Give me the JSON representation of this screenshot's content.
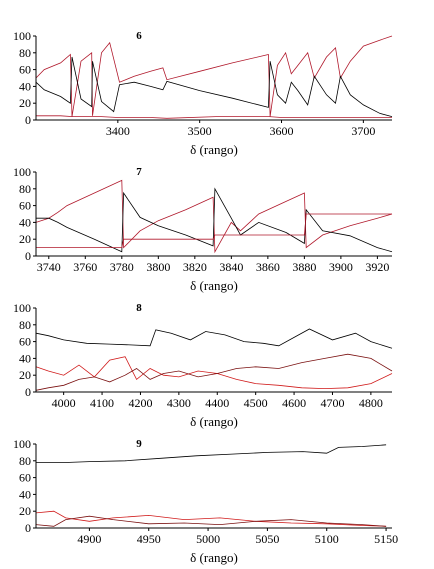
{
  "chart_data": [
    {
      "type": "line",
      "title": "6",
      "xlabel": "δ (rango)",
      "xlim": [
        3300,
        3735
      ],
      "ylim": [
        0,
        100
      ],
      "xticks": [
        3400,
        3500,
        3600,
        3700
      ],
      "yticks": [
        0,
        20,
        40,
        60,
        80,
        100
      ],
      "grid": false,
      "series": [
        {
          "color": "#b0182b",
          "x": [
            3300,
            3310,
            3330,
            3342,
            3344,
            3355,
            3368,
            3369,
            3380,
            3390,
            3402,
            3420,
            3440,
            3455,
            3460,
            3500,
            3540,
            3584,
            3586,
            3595,
            3605,
            3612,
            3620,
            3632,
            3640,
            3655,
            3666,
            3672,
            3684,
            3700,
            3720,
            3735
          ],
          "y": [
            50,
            60,
            68,
            78,
            4,
            70,
            80,
            5,
            80,
            92,
            45,
            52,
            58,
            62,
            48,
            58,
            68,
            78,
            4,
            65,
            80,
            55,
            65,
            80,
            50,
            75,
            86,
            50,
            70,
            88,
            95,
            100
          ]
        },
        {
          "color": "#000000",
          "x": [
            3300,
            3310,
            3330,
            3342,
            3344,
            3355,
            3368,
            3369,
            3380,
            3395,
            3402,
            3420,
            3440,
            3455,
            3460,
            3500,
            3540,
            3584,
            3586,
            3595,
            3605,
            3612,
            3620,
            3632,
            3640,
            3655,
            3666,
            3672,
            3684,
            3700,
            3720,
            3735
          ],
          "y": [
            45,
            36,
            28,
            20,
            75,
            25,
            16,
            70,
            22,
            10,
            42,
            45,
            40,
            36,
            46,
            35,
            26,
            15,
            70,
            30,
            20,
            45,
            35,
            18,
            52,
            30,
            20,
            52,
            30,
            18,
            8,
            4
          ]
        },
        {
          "color": "#b0182b",
          "x": [
            3300,
            3330,
            3345,
            3380,
            3400,
            3440,
            3460,
            3520,
            3585,
            3600,
            3735
          ],
          "y": [
            5,
            5,
            4,
            4,
            3,
            3,
            2,
            4,
            4,
            3,
            3
          ]
        }
      ]
    },
    {
      "type": "line",
      "title": "7",
      "xlabel": "δ (rango)",
      "xlim": [
        3733,
        3928
      ],
      "ylim": [
        0,
        100
      ],
      "xticks": [
        3740,
        3760,
        3780,
        3800,
        3820,
        3840,
        3860,
        3880,
        3900,
        3920
      ],
      "yticks": [
        0,
        20,
        40,
        60,
        80,
        100
      ],
      "grid": false,
      "series": [
        {
          "color": "#b0182b",
          "x": [
            3733,
            3740,
            3745,
            3750,
            3765,
            3780,
            3781,
            3790,
            3800,
            3815,
            3830,
            3831,
            3840,
            3845,
            3855,
            3870,
            3880,
            3881,
            3890,
            3905,
            3920,
            3928
          ],
          "y": [
            40,
            45,
            52,
            60,
            75,
            90,
            10,
            30,
            42,
            55,
            70,
            5,
            40,
            30,
            50,
            65,
            75,
            10,
            25,
            36,
            45,
            50
          ]
        },
        {
          "color": "#000000",
          "x": [
            3733,
            3740,
            3745,
            3750,
            3765,
            3780,
            3781,
            3790,
            3800,
            3815,
            3830,
            3831,
            3840,
            3845,
            3855,
            3870,
            3880,
            3881,
            3890,
            3905,
            3920,
            3928
          ],
          "y": [
            45,
            45,
            40,
            34,
            20,
            5,
            75,
            46,
            36,
            25,
            12,
            80,
            45,
            25,
            40,
            28,
            15,
            55,
            30,
            24,
            10,
            5
          ]
        },
        {
          "color": "#b0182b",
          "x": [
            3733,
            3780,
            3781,
            3830,
            3831,
            3880,
            3881,
            3928
          ],
          "y": [
            10,
            10,
            20,
            20,
            25,
            25,
            50,
            50
          ]
        }
      ]
    },
    {
      "type": "line",
      "title": "8",
      "xlabel": "δ (rango)",
      "xlim": [
        3928,
        4855
      ],
      "ylim": [
        0,
        100
      ],
      "xticks": [
        4000,
        4100,
        4200,
        4300,
        4400,
        4500,
        4600,
        4700,
        4800
      ],
      "yticks": [
        0,
        20,
        40,
        60,
        80,
        100
      ],
      "grid": false,
      "series": [
        {
          "color": "#000000",
          "x": [
            3928,
            3960,
            4000,
            4060,
            4120,
            4180,
            4225,
            4240,
            4280,
            4330,
            4370,
            4420,
            4470,
            4520,
            4560,
            4600,
            4640,
            4700,
            4760,
            4800,
            4855
          ],
          "y": [
            70,
            67,
            62,
            58,
            57,
            56,
            55,
            74,
            70,
            62,
            72,
            68,
            60,
            58,
            55,
            65,
            75,
            62,
            70,
            60,
            52
          ]
        },
        {
          "color": "#d01a1a",
          "x": [
            3928,
            3960,
            4000,
            4040,
            4080,
            4120,
            4160,
            4190,
            4225,
            4260,
            4300,
            4350,
            4400,
            4450,
            4500,
            4560,
            4620,
            4680,
            4740,
            4800,
            4855
          ],
          "y": [
            30,
            25,
            20,
            32,
            18,
            38,
            42,
            15,
            28,
            20,
            18,
            25,
            22,
            15,
            10,
            8,
            5,
            4,
            5,
            10,
            22
          ]
        },
        {
          "color": "#7a1010",
          "x": [
            3928,
            3960,
            4000,
            4040,
            4080,
            4120,
            4160,
            4190,
            4225,
            4260,
            4300,
            4350,
            4400,
            4450,
            4500,
            4560,
            4620,
            4680,
            4740,
            4800,
            4855
          ],
          "y": [
            2,
            5,
            8,
            15,
            18,
            12,
            20,
            28,
            15,
            22,
            25,
            18,
            22,
            28,
            30,
            28,
            35,
            40,
            45,
            40,
            25
          ]
        }
      ]
    },
    {
      "type": "line",
      "title": "9",
      "xlabel": "δ (rango)",
      "xlim": [
        4855,
        5155
      ],
      "ylim": [
        0,
        100
      ],
      "xticks": [
        4900,
        4950,
        5000,
        5050,
        5100,
        5150
      ],
      "yticks": [
        0,
        20,
        40,
        60,
        80,
        100
      ],
      "grid": false,
      "series": [
        {
          "color": "#000000",
          "x": [
            4855,
            4880,
            4900,
            4930,
            4960,
            4990,
            5020,
            5050,
            5080,
            5100,
            5110,
            5130,
            5150
          ],
          "y": [
            78,
            78,
            79,
            80,
            83,
            86,
            88,
            90,
            91,
            89,
            96,
            97,
            99
          ]
        },
        {
          "color": "#d01a1a",
          "x": [
            4855,
            4870,
            4880,
            4900,
            4920,
            4950,
            4980,
            5010,
            5040,
            5070,
            5100,
            5130,
            5150
          ],
          "y": [
            18,
            20,
            12,
            8,
            12,
            15,
            10,
            12,
            8,
            6,
            5,
            3,
            2
          ]
        },
        {
          "color": "#7a1010",
          "x": [
            4855,
            4870,
            4880,
            4900,
            4920,
            4950,
            4980,
            5010,
            5040,
            5070,
            5100,
            5130,
            5150
          ],
          "y": [
            4,
            2,
            10,
            14,
            10,
            5,
            6,
            4,
            8,
            10,
            6,
            4,
            2
          ]
        }
      ]
    }
  ]
}
